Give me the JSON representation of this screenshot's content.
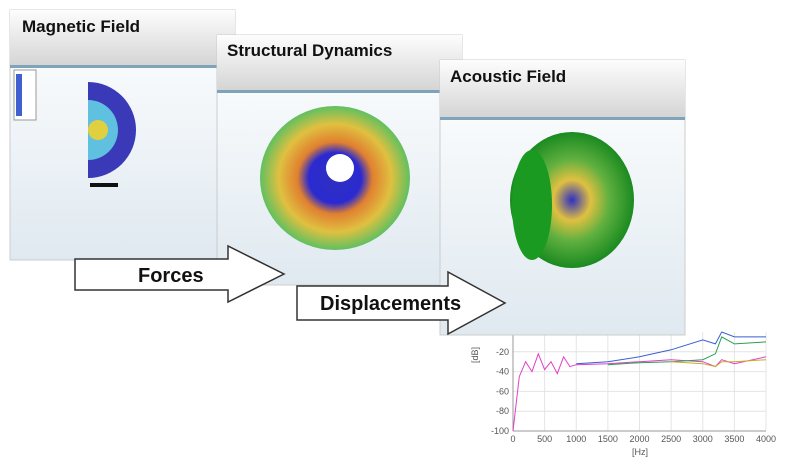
{
  "panels": [
    {
      "title": "Magnetic Field"
    },
    {
      "title": "Structural Dynamics"
    },
    {
      "title": "Acoustic Field"
    }
  ],
  "arrows": [
    {
      "label": "Forces"
    },
    {
      "label": "Displacements"
    }
  ],
  "chart_data": {
    "type": "line",
    "y_label": "[dB]",
    "x_label": "[Hz]",
    "x": [
      0,
      100,
      200,
      300,
      400,
      500,
      600,
      700,
      800,
      900,
      1000,
      1500,
      2000,
      2500,
      3000,
      3200,
      3300,
      3500,
      4000
    ],
    "xlim": [
      0,
      4000
    ],
    "ylim": [
      -100,
      0
    ],
    "xticks": [
      0,
      500,
      1000,
      1500,
      2000,
      2500,
      3000,
      3500,
      4000
    ],
    "yticks": [
      -100,
      -80,
      -60,
      -40,
      -20
    ],
    "series": [
      {
        "name": "pink",
        "color": "#e040c8",
        "values": [
          -100,
          -45,
          -30,
          -40,
          -22,
          -38,
          -30,
          -42,
          -25,
          -35,
          -33,
          -32,
          -30,
          -28,
          -30,
          -35,
          -28,
          -32,
          -25
        ]
      },
      {
        "name": "blue",
        "color": "#3a5fd0",
        "values": [
          null,
          null,
          null,
          null,
          null,
          null,
          null,
          null,
          null,
          null,
          -32,
          -30,
          -25,
          -18,
          -8,
          -12,
          0,
          -5,
          -5
        ]
      },
      {
        "name": "green",
        "color": "#2aa050",
        "values": [
          null,
          null,
          null,
          null,
          null,
          null,
          null,
          null,
          null,
          null,
          null,
          -33,
          -31,
          -30,
          -28,
          -22,
          -5,
          -12,
          -10
        ]
      },
      {
        "name": "yellow",
        "color": "#c8b020",
        "values": [
          null,
          null,
          null,
          null,
          null,
          null,
          null,
          null,
          null,
          null,
          null,
          null,
          null,
          -30,
          -32,
          -35,
          -30,
          -30,
          -28
        ]
      }
    ]
  }
}
